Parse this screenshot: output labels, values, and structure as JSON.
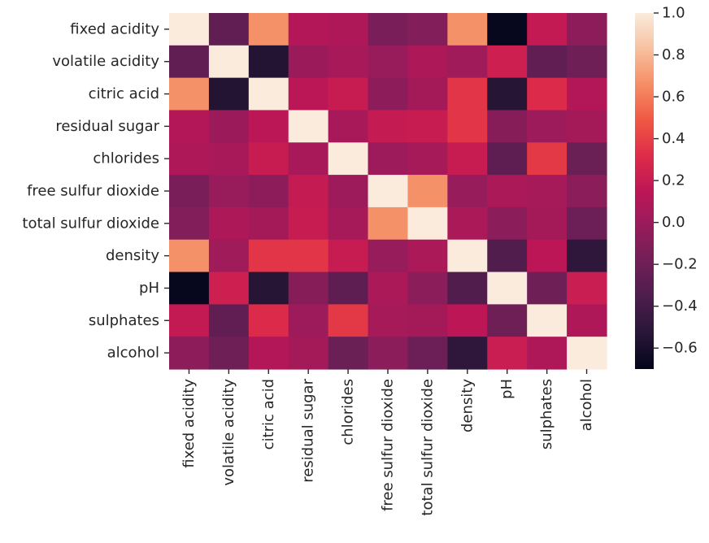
{
  "chart_data": {
    "type": "heatmap",
    "title": "",
    "xlabel": "",
    "ylabel": "",
    "row_labels": [
      "fixed acidity",
      "volatile acidity",
      "citric acid",
      "residual sugar",
      "chlorides",
      "free sulfur dioxide",
      "total sulfur dioxide",
      "density",
      "pH",
      "sulphates",
      "alcohol"
    ],
    "column_labels": [
      "fixed acidity",
      "volatile acidity",
      "citric acid",
      "residual sugar",
      "chlorides",
      "free sulfur dioxide",
      "total sulfur dioxide",
      "density",
      "pH",
      "sulphates",
      "alcohol"
    ],
    "values": [
      [
        1.0,
        -0.26,
        0.67,
        0.11,
        0.09,
        -0.15,
        -0.11,
        0.67,
        -0.68,
        0.18,
        -0.06
      ],
      [
        -0.26,
        1.0,
        -0.55,
        0.0,
        0.06,
        -0.01,
        0.08,
        0.02,
        0.23,
        -0.26,
        -0.2
      ],
      [
        0.67,
        -0.55,
        1.0,
        0.14,
        0.2,
        -0.06,
        0.04,
        0.36,
        -0.54,
        0.31,
        0.11
      ],
      [
        0.11,
        0.0,
        0.14,
        1.0,
        0.06,
        0.19,
        0.2,
        0.36,
        -0.09,
        0.01,
        0.04
      ],
      [
        0.09,
        0.06,
        0.2,
        0.06,
        1.0,
        0.01,
        0.05,
        0.2,
        -0.27,
        0.37,
        -0.22
      ],
      [
        -0.15,
        -0.01,
        -0.06,
        0.19,
        0.01,
        1.0,
        0.67,
        -0.02,
        0.07,
        0.05,
        -0.07
      ],
      [
        -0.11,
        0.08,
        0.04,
        0.2,
        0.05,
        0.67,
        1.0,
        0.07,
        -0.07,
        0.04,
        -0.21
      ],
      [
        0.67,
        0.02,
        0.36,
        0.36,
        0.2,
        -0.02,
        0.07,
        1.0,
        -0.34,
        0.15,
        -0.5
      ],
      [
        -0.68,
        0.23,
        -0.54,
        -0.09,
        -0.27,
        0.07,
        -0.07,
        -0.34,
        1.0,
        -0.2,
        0.21
      ],
      [
        0.18,
        -0.26,
        0.31,
        0.01,
        0.37,
        0.05,
        0.04,
        0.15,
        -0.2,
        1.0,
        0.09
      ],
      [
        -0.06,
        -0.2,
        0.11,
        0.04,
        -0.22,
        -0.07,
        -0.21,
        -0.5,
        0.21,
        0.09,
        1.0
      ]
    ],
    "colormap": "rocket",
    "color_range": [
      -0.7,
      1.0
    ],
    "colorbar_ticks": [
      1.0,
      0.8,
      0.6,
      0.4,
      0.2,
      0.0,
      -0.2,
      -0.4,
      -0.6
    ],
    "colorbar_tick_labels": [
      "1.0",
      "0.8",
      "0.6",
      "0.4",
      "0.2",
      "0.0",
      "−0.2",
      "−0.4",
      "−0.6"
    ],
    "grid": false,
    "legend": "colorbar at right"
  }
}
